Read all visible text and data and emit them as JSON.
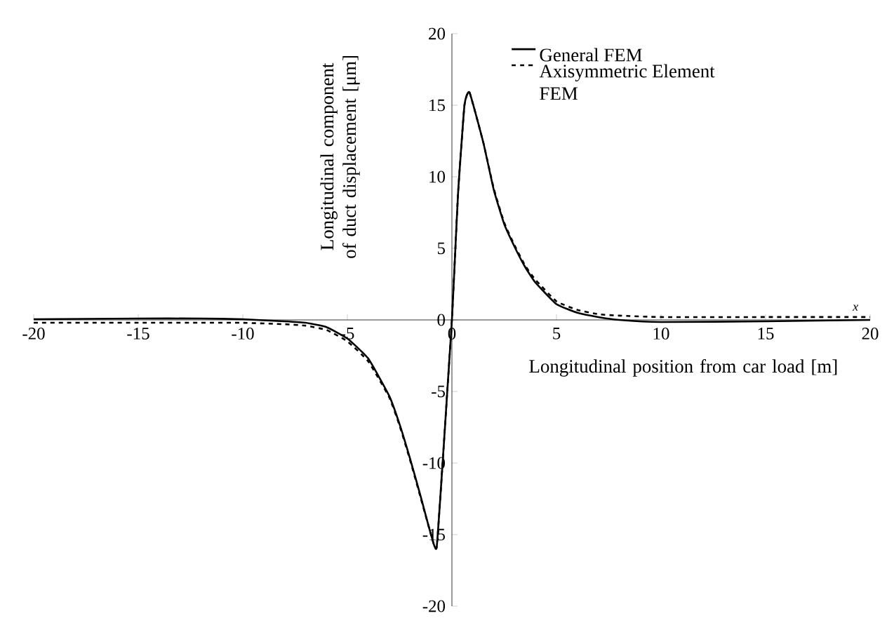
{
  "chart_data": {
    "type": "line",
    "xlabel": "Longitudinal position from car load [m]",
    "ylabel": "Longitudinal component of duct displacement [μm]",
    "annotations": [
      "x"
    ],
    "xlim": [
      -20,
      20
    ],
    "xticks": [
      -20,
      -15,
      -10,
      -5,
      0,
      5,
      10,
      15,
      20
    ],
    "ylim": [
      -20,
      20
    ],
    "yticks": [
      -20,
      -15,
      -10,
      -5,
      0,
      5,
      10,
      15,
      20
    ],
    "grid": false,
    "legend": "top right",
    "marker": "none",
    "series": [
      {
        "name": "General FEM",
        "color": "#000000",
        "line_style": "solid",
        "x": [
          -20,
          -15,
          -12,
          -10,
          -8,
          -7,
          -6,
          -5,
          -4,
          -3,
          -2.5,
          -2,
          -1.5,
          -1,
          -0.73,
          -0.4,
          -0.2,
          0,
          0.15,
          0.3,
          0.6,
          0.84,
          1.5,
          2,
          2.5,
          3,
          3.5,
          4,
          5,
          6,
          7,
          8,
          10,
          15,
          20
        ],
        "values": [
          0.05,
          0.1,
          0.1,
          0.05,
          -0.1,
          -0.2,
          -0.5,
          -1.3,
          -2.7,
          -5.3,
          -7.3,
          -9.7,
          -12.3,
          -15,
          -15.9,
          -9,
          -4.5,
          0,
          4.5,
          9,
          15,
          15.9,
          12.4,
          9.1,
          6.7,
          5.1,
          3.7,
          2.6,
          1.1,
          0.5,
          0.2,
          0,
          -0.15,
          -0.1,
          0
        ]
      },
      {
        "name": "Axisymmetric Element FEM",
        "color": "#000000",
        "line_style": "dashed",
        "x": [
          -20,
          -15,
          -12,
          -10,
          -8,
          -7,
          -6,
          -5,
          -4,
          -3,
          -2.5,
          -2,
          -1.5,
          -1,
          -0.73,
          -0.4,
          -0.2,
          0,
          0.15,
          0.3,
          0.6,
          0.84,
          1.5,
          2,
          2.5,
          3,
          3.5,
          4,
          5,
          6,
          7,
          8,
          10,
          15,
          20
        ],
        "values": [
          -0.2,
          -0.2,
          -0.2,
          -0.2,
          -0.3,
          -0.4,
          -0.7,
          -1.5,
          -2.9,
          -5.4,
          -7.4,
          -9.8,
          -12.4,
          -15,
          -15.9,
          -9,
          -4.5,
          0,
          4.5,
          9,
          15,
          15.9,
          12.4,
          9.2,
          6.8,
          5.2,
          3.8,
          2.8,
          1.3,
          0.7,
          0.4,
          0.3,
          0.2,
          0.2,
          0.2
        ]
      }
    ]
  }
}
